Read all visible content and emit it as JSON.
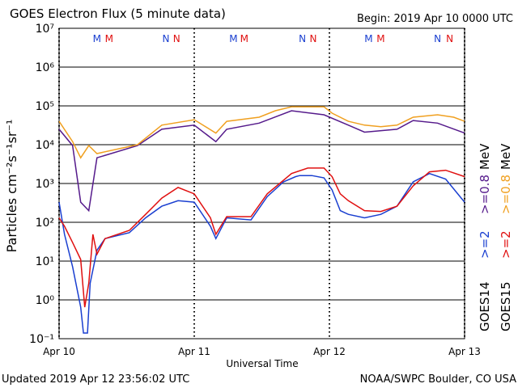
{
  "chart_data": {
    "type": "line",
    "title": "GOES Electron Flux (5 minute data)",
    "subtitle": "Begin: 2019 Apr 10 0000 UTC",
    "xlabel": "Universal Time",
    "ylabel": "Particles cm⁻²s⁻¹sr⁻¹",
    "footer_left": "Updated 2019 Apr 12 23:56:02 UTC",
    "footer_right": "NOAA/SWPC Boulder, CO USA",
    "ylog": true,
    "grid": true,
    "threshold": 1000,
    "xlim": [
      0,
      3
    ],
    "xticks": [
      {
        "value": 0,
        "label": "Apr 10"
      },
      {
        "value": 1,
        "label": "Apr 11"
      },
      {
        "value": 2,
        "label": "Apr 12"
      },
      {
        "value": 3,
        "label": "Apr 13"
      }
    ],
    "ylim": [
      0.1,
      10000000
    ],
    "yticks": [
      {
        "value": 0.1,
        "label": "10⁻¹"
      },
      {
        "value": 1,
        "label": "10⁰"
      },
      {
        "value": 10,
        "label": "10¹"
      },
      {
        "value": 100,
        "label": "10²"
      },
      {
        "value": 1000,
        "label": "10³"
      },
      {
        "value": 10000,
        "label": "10⁴"
      },
      {
        "value": 100000,
        "label": "10⁵"
      },
      {
        "value": 1000000,
        "label": "10⁶"
      },
      {
        "value": 10000000,
        "label": "10⁷"
      }
    ],
    "legend_units": "MeV",
    "series": [
      {
        "group": "GOES14",
        "name": ">=0.8",
        "color": "#551a8b",
        "x": [
          0,
          0.1,
          0.16,
          0.22,
          0.28,
          0.58,
          0.76,
          1.0,
          1.16,
          1.24,
          1.48,
          1.72,
          1.96,
          2.14,
          2.26,
          2.5,
          2.62,
          2.8,
          3.0
        ],
        "values": [
          25000,
          9500,
          330,
          200,
          4600,
          9500,
          25000,
          32000,
          12000,
          25000,
          36000,
          75000,
          59000,
          32000,
          21000,
          25000,
          42000,
          36000,
          20000
        ]
      },
      {
        "group": "GOES15",
        "name": ">=0.8",
        "color": "#f0a020",
        "x": [
          0,
          0.1,
          0.16,
          0.22,
          0.28,
          0.58,
          0.76,
          1.0,
          1.16,
          1.24,
          1.48,
          1.6,
          1.72,
          1.96,
          2.02,
          2.14,
          2.26,
          2.38,
          2.5,
          2.62,
          2.8,
          2.92,
          3.0
        ],
        "values": [
          40000,
          12000,
          4600,
          9500,
          5900,
          10000,
          32000,
          44000,
          20000,
          40000,
          51000,
          75000,
          95000,
          95000,
          65000,
          40000,
          32000,
          29000,
          32000,
          51000,
          59000,
          51000,
          40000
        ]
      },
      {
        "group": "GOES14",
        "name": ">=2",
        "color": "#1a3fd0",
        "x": [
          0,
          0.04,
          0.1,
          0.16,
          0.18,
          0.21,
          0.23,
          0.28,
          0.34,
          0.52,
          0.64,
          0.76,
          0.88,
          1.0,
          1.12,
          1.16,
          1.24,
          1.42,
          1.54,
          1.66,
          1.75,
          1.78,
          1.87,
          1.96,
          2.02,
          2.08,
          2.14,
          2.26,
          2.38,
          2.5,
          2.62,
          2.74,
          2.86,
          3.0
        ],
        "values": [
          330,
          49,
          7.1,
          0.65,
          0.14,
          0.14,
          2.7,
          19,
          38,
          54,
          130,
          260,
          360,
          330,
          79,
          38,
          130,
          115,
          460,
          1100,
          1500,
          1600,
          1600,
          1400,
          680,
          200,
          160,
          130,
          160,
          260,
          1100,
          1800,
          1300,
          330
        ]
      },
      {
        "group": "GOES15",
        "name": ">=2",
        "color": "#e01010",
        "x": [
          0,
          0.04,
          0.1,
          0.16,
          0.19,
          0.22,
          0.25,
          0.28,
          0.34,
          0.52,
          0.64,
          0.76,
          0.88,
          1.0,
          1.12,
          1.16,
          1.24,
          1.42,
          1.54,
          1.72,
          1.84,
          1.96,
          2.02,
          2.08,
          2.14,
          2.26,
          2.38,
          2.5,
          2.62,
          2.74,
          2.86,
          3.0
        ],
        "values": [
          130,
          79,
          30,
          11,
          0.65,
          2.7,
          49,
          15,
          38,
          62,
          160,
          420,
          790,
          540,
          130,
          49,
          140,
          140,
          540,
          1800,
          2500,
          2500,
          1500,
          540,
          360,
          200,
          190,
          260,
          870,
          2000,
          2200,
          1500
        ]
      }
    ],
    "markers": [
      {
        "text": "M",
        "x": 0.28,
        "color": "#1a3fd0"
      },
      {
        "text": "M",
        "x": 0.37,
        "color": "#e01010"
      },
      {
        "text": "N",
        "x": 0.79,
        "color": "#1a3fd0"
      },
      {
        "text": "N",
        "x": 0.87,
        "color": "#e01010"
      },
      {
        "text": "M",
        "x": 1.29,
        "color": "#1a3fd0"
      },
      {
        "text": "M",
        "x": 1.37,
        "color": "#e01010"
      },
      {
        "text": "N",
        "x": 1.8,
        "color": "#1a3fd0"
      },
      {
        "text": "N",
        "x": 1.88,
        "color": "#e01010"
      },
      {
        "text": "M",
        "x": 2.29,
        "color": "#1a3fd0"
      },
      {
        "text": "M",
        "x": 2.38,
        "color": "#e01010"
      },
      {
        "text": "N",
        "x": 2.8,
        "color": "#1a3fd0"
      },
      {
        "text": "N",
        "x": 2.89,
        "color": "#e01010"
      }
    ]
  }
}
